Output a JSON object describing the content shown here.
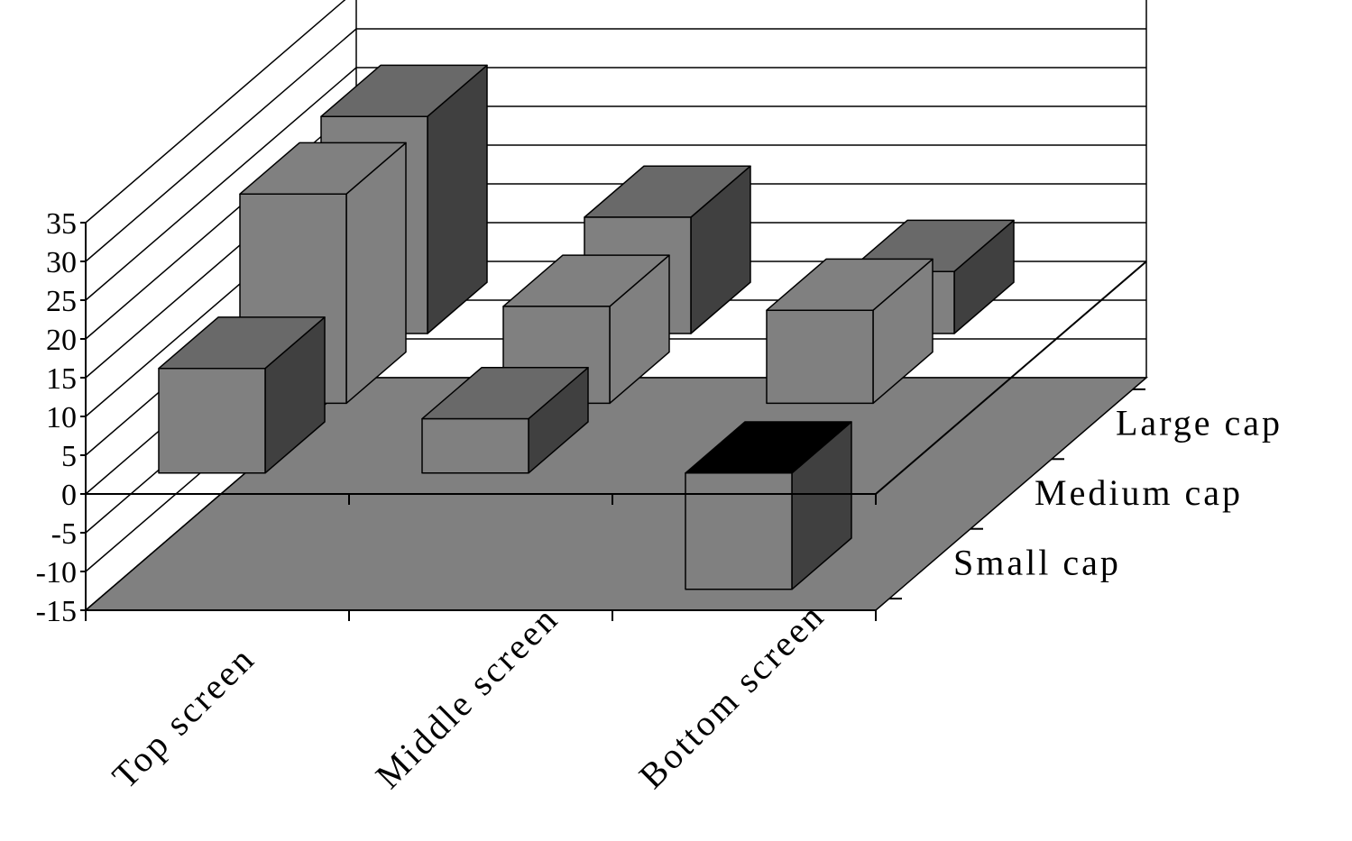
{
  "chart_data": {
    "type": "bar",
    "subtype": "3d-column",
    "title": "",
    "xlabel": "",
    "ylabel": "",
    "categories": [
      "Top screen",
      "Middle screen",
      "Bottom screen"
    ],
    "series": [
      {
        "name": "Small cap",
        "values": [
          13.5,
          7,
          -15
        ]
      },
      {
        "name": "Medium cap",
        "values": [
          27,
          12.5,
          12
        ]
      },
      {
        "name": "Large cap",
        "values": [
          28,
          15,
          8
        ]
      }
    ],
    "ylim": [
      -15,
      35
    ],
    "yticks": [
      "-15",
      "-10",
      "-5",
      "0",
      "5",
      "10",
      "15",
      "20",
      "25",
      "30",
      "35"
    ],
    "grid": true,
    "legend": "none",
    "colors": {
      "front": "#808080",
      "side": "#404040",
      "top": "#696969",
      "top_negative": "#000000",
      "floor": "#808080",
      "medium_side": "#808080",
      "medium_top": "#808080"
    }
  }
}
